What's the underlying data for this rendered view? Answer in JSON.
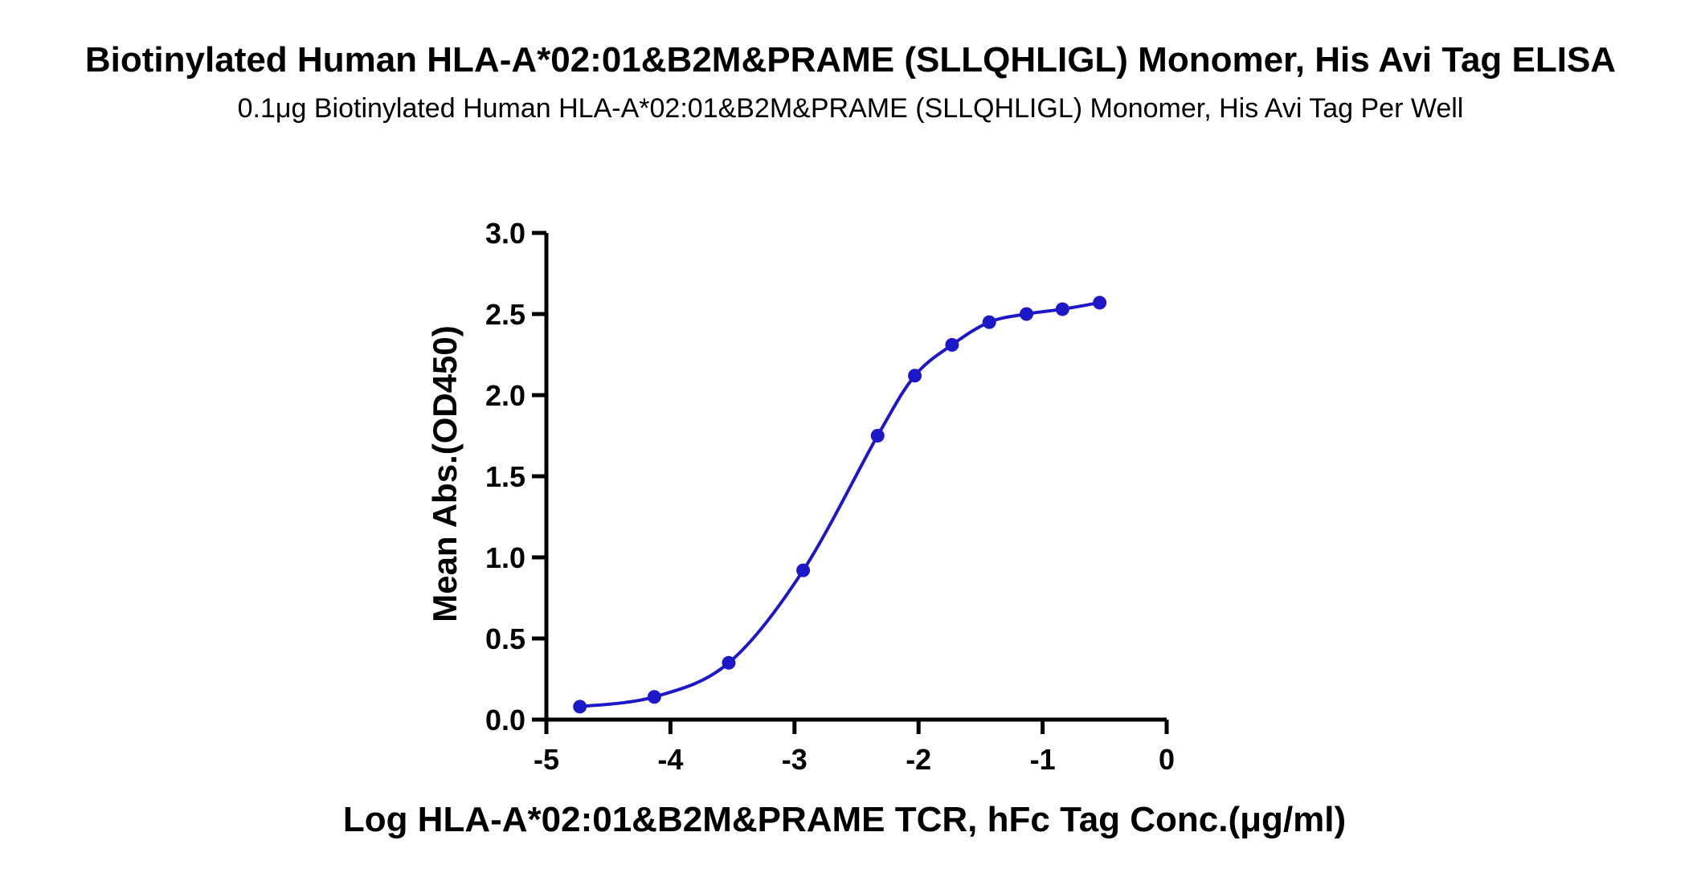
{
  "chart_data": {
    "type": "scatter",
    "title": "Biotinylated Human HLA-A*02:01&B2M&PRAME (SLLQHLIGL) Monomer, His Avi Tag ELISA",
    "subtitle": "0.1μg Biotinylated Human HLA-A*02:01&B2M&PRAME (SLLQHLIGL) Monomer, His Avi Tag Per Well",
    "xlabel": "Log HLA-A*02:01&B2M&PRAME TCR, hFc Tag Conc.(μg/ml)",
    "ylabel": "Mean Abs.(OD450)",
    "xlim": [
      -5,
      0
    ],
    "ylim": [
      0,
      3.0
    ],
    "x_ticks": [
      -5,
      -4,
      -3,
      -2,
      -1,
      0
    ],
    "x_tick_labels": [
      "-5",
      "-4",
      "-3",
      "-2",
      "-1",
      "0"
    ],
    "y_ticks": [
      0,
      0.5,
      1.0,
      1.5,
      2.0,
      2.5,
      3.0
    ],
    "y_tick_labels": [
      "0.0",
      "0.5",
      "1.0",
      "1.5",
      "2.0",
      "2.5",
      "3.0"
    ],
    "series": [
      {
        "x": [
          -4.73,
          -4.13,
          -3.53,
          -2.93,
          -2.33,
          -2.03,
          -1.73,
          -1.43,
          -1.13,
          -0.84,
          -0.54
        ],
        "y": [
          0.08,
          0.14,
          0.35,
          0.92,
          1.75,
          2.12,
          2.31,
          2.45,
          2.5,
          2.53,
          2.57
        ],
        "color": "#1c17c8",
        "fit": "sigmoidal"
      }
    ],
    "grid": false,
    "legend": "none"
  }
}
